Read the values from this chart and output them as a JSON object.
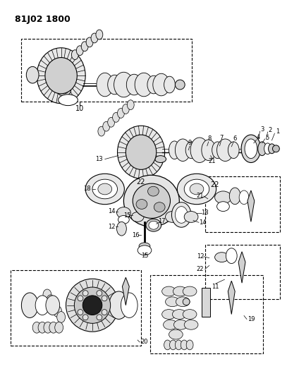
{
  "title": "81J02 1800",
  "bg_color": "#ffffff",
  "fg_color": "#000000",
  "fig_width": 4.07,
  "fig_height": 5.33,
  "dpi": 100
}
